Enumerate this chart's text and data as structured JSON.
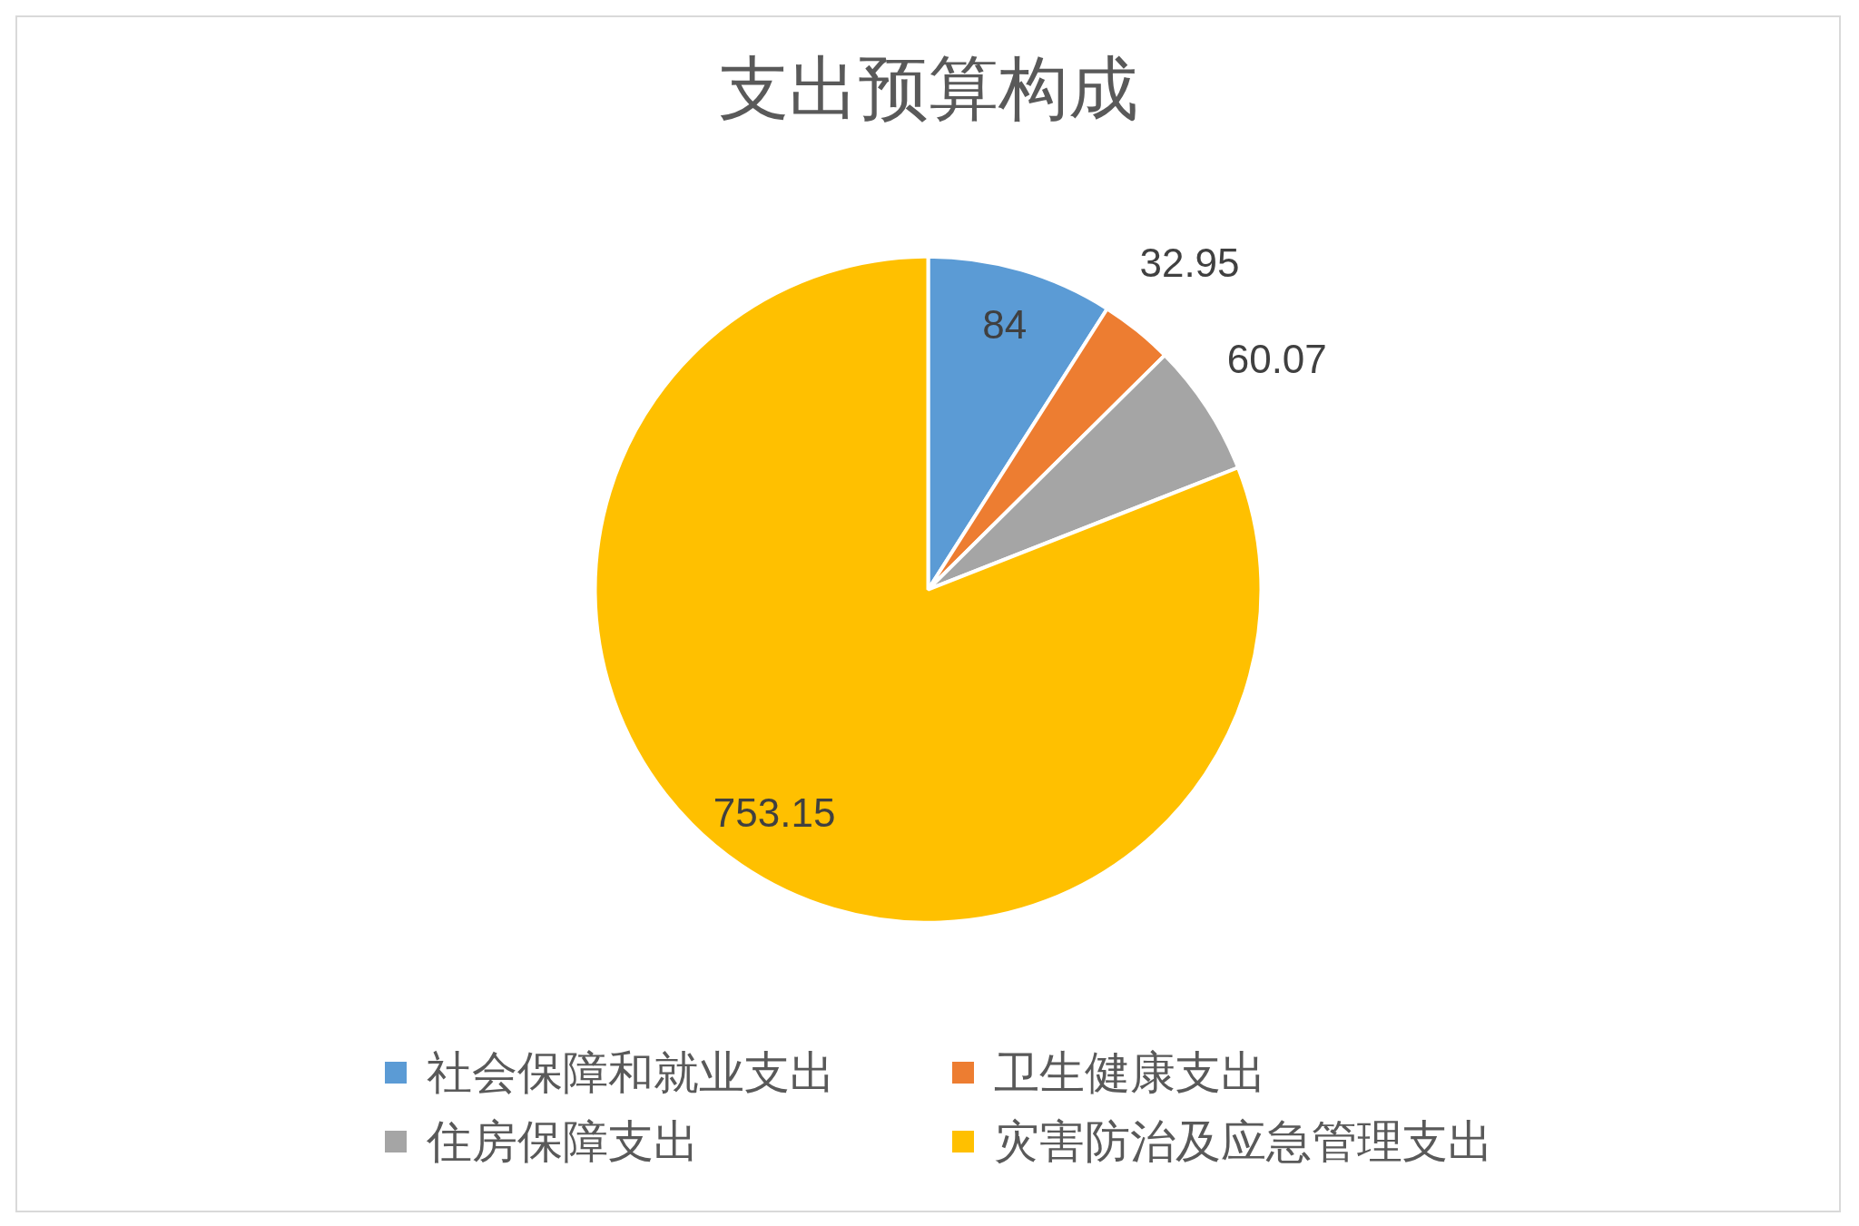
{
  "chart_data": {
    "type": "pie",
    "title": "支出预算构成",
    "categories": [
      "社会保障和就业支出",
      "卫生健康支出",
      "住房保障支出",
      "灾害防治及应急管理支出"
    ],
    "values": [
      84,
      32.95,
      60.07,
      753.15
    ],
    "colors": [
      "#5b9bd5",
      "#ed7d31",
      "#a5a5a5",
      "#ffc000"
    ],
    "data_labels": true,
    "legend": "bottom"
  }
}
